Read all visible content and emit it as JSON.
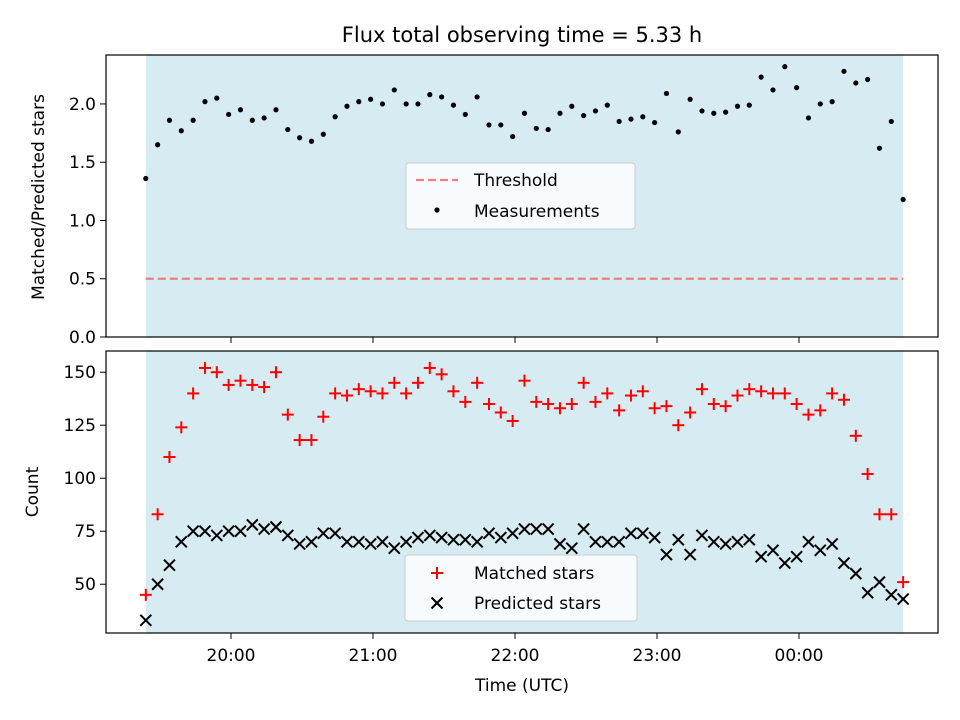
{
  "title": "Flux total observing time = 5.33 h",
  "colors": {
    "band": "#add8e6",
    "threshold": "#f08080",
    "measurements": "#000000",
    "matched": "#ff0000",
    "predicted": "#000000"
  },
  "chart_data": [
    {
      "type": "scatter",
      "ylabel": "Matched/Predicted stars",
      "xlabel": "",
      "ylim": [
        0,
        2.42
      ],
      "yticks": [
        "0.0",
        "0.5",
        "1.0",
        "1.5",
        "2.0"
      ],
      "shaded_band_time_range": [
        "19:24",
        "24:44"
      ],
      "threshold": 0.5,
      "legend_position": "center",
      "legend": [
        "Threshold",
        "Measurements"
      ],
      "series": [
        {
          "name": "Measurements",
          "x": [
            "19:24",
            "19:29",
            "19:34",
            "19:39",
            "19:44",
            "19:49",
            "19:54",
            "19:59",
            "20:04",
            "20:09",
            "20:14",
            "20:19",
            "20:24",
            "20:29",
            "20:34",
            "20:39",
            "20:44",
            "20:49",
            "20:54",
            "20:59",
            "21:04",
            "21:09",
            "21:14",
            "21:19",
            "21:24",
            "21:29",
            "21:34",
            "21:39",
            "21:44",
            "21:49",
            "21:54",
            "21:59",
            "22:04",
            "22:09",
            "22:14",
            "22:19",
            "22:24",
            "22:29",
            "22:34",
            "22:39",
            "22:44",
            "22:49",
            "22:54",
            "22:59",
            "23:04",
            "23:09",
            "23:14",
            "23:19",
            "23:24",
            "23:29",
            "23:34",
            "23:39",
            "23:44",
            "23:49",
            "23:54",
            "23:59",
            "24:04",
            "24:09",
            "24:14",
            "24:19",
            "24:24",
            "24:29",
            "24:34",
            "24:39",
            "24:44"
          ],
          "values": [
            1.36,
            1.65,
            1.86,
            1.77,
            1.86,
            2.02,
            2.05,
            1.91,
            1.95,
            1.86,
            1.88,
            1.95,
            1.78,
            1.71,
            1.68,
            1.74,
            1.89,
            1.98,
            2.02,
            2.04,
            2.0,
            2.12,
            2.0,
            2.0,
            2.08,
            2.06,
            1.99,
            1.91,
            2.06,
            1.82,
            1.82,
            1.72,
            1.92,
            1.79,
            1.78,
            1.92,
            1.98,
            1.9,
            1.94,
            1.99,
            1.85,
            1.87,
            1.89,
            1.84,
            2.09,
            1.76,
            2.04,
            1.94,
            1.92,
            1.93,
            1.98,
            1.99,
            2.23,
            2.12,
            2.32,
            2.14,
            1.88,
            2.0,
            2.02,
            2.28,
            2.18,
            2.21,
            1.62,
            1.85,
            1.18
          ]
        }
      ]
    },
    {
      "type": "scatter",
      "ylabel": "Count",
      "xlabel": "Time (UTC)",
      "ylim": [
        27,
        160
      ],
      "yticks": [
        "50",
        "75",
        "100",
        "125",
        "150"
      ],
      "xticks": [
        "20:00",
        "21:00",
        "22:00",
        "23:00",
        "00:00"
      ],
      "legend_position": "bottom center",
      "series": [
        {
          "name": "Matched stars",
          "x": [
            "19:24",
            "19:29",
            "19:34",
            "19:39",
            "19:44",
            "19:49",
            "19:54",
            "19:59",
            "20:04",
            "20:09",
            "20:14",
            "20:19",
            "20:24",
            "20:29",
            "20:34",
            "20:39",
            "20:44",
            "20:49",
            "20:54",
            "20:59",
            "21:04",
            "21:09",
            "21:14",
            "21:19",
            "21:24",
            "21:29",
            "21:34",
            "21:39",
            "21:44",
            "21:49",
            "21:54",
            "21:59",
            "22:04",
            "22:09",
            "22:14",
            "22:19",
            "22:24",
            "22:29",
            "22:34",
            "22:39",
            "22:44",
            "22:49",
            "22:54",
            "22:59",
            "23:04",
            "23:09",
            "23:14",
            "23:19",
            "23:24",
            "23:29",
            "23:34",
            "23:39",
            "23:44",
            "23:49",
            "23:54",
            "23:59",
            "24:04",
            "24:09",
            "24:14",
            "24:19",
            "24:24",
            "24:29",
            "24:34",
            "24:39",
            "24:44"
          ],
          "values": [
            45,
            83,
            110,
            124,
            140,
            152,
            150,
            144,
            146,
            144,
            143,
            150,
            130,
            118,
            118,
            129,
            140,
            139,
            142,
            141,
            140,
            145,
            140,
            145,
            152,
            149,
            141,
            136,
            145,
            135,
            131,
            127,
            146,
            136,
            135,
            133,
            135,
            145,
            136,
            140,
            132,
            139,
            141,
            133,
            134,
            125,
            131,
            142,
            135,
            134,
            139,
            142,
            141,
            140,
            140,
            135,
            130,
            132,
            140,
            137,
            120,
            102,
            83,
            83,
            51
          ]
        },
        {
          "name": "Predicted stars",
          "x": [
            "19:24",
            "19:29",
            "19:34",
            "19:39",
            "19:44",
            "19:49",
            "19:54",
            "19:59",
            "20:04",
            "20:09",
            "20:14",
            "20:19",
            "20:24",
            "20:29",
            "20:34",
            "20:39",
            "20:44",
            "20:49",
            "20:54",
            "20:59",
            "21:04",
            "21:09",
            "21:14",
            "21:19",
            "21:24",
            "21:29",
            "21:34",
            "21:39",
            "21:44",
            "21:49",
            "21:54",
            "21:59",
            "22:04",
            "22:09",
            "22:14",
            "22:19",
            "22:24",
            "22:29",
            "22:34",
            "22:39",
            "22:44",
            "22:49",
            "22:54",
            "22:59",
            "23:04",
            "23:09",
            "23:14",
            "23:19",
            "23:24",
            "23:29",
            "23:34",
            "23:39",
            "23:44",
            "23:49",
            "23:54",
            "23:59",
            "24:04",
            "24:09",
            "24:14",
            "24:19",
            "24:24",
            "24:29",
            "24:34",
            "24:39",
            "24:44"
          ],
          "values": [
            33,
            50,
            59,
            70,
            75,
            75,
            73,
            75,
            75,
            78,
            76,
            77,
            73,
            69,
            70,
            74,
            74,
            70,
            70,
            69,
            70,
            67,
            70,
            72,
            73,
            72,
            71,
            71,
            70,
            74,
            72,
            74,
            76,
            76,
            76,
            69,
            67,
            76,
            70,
            70,
            70,
            74,
            74,
            72,
            64,
            71,
            64,
            73,
            70,
            69,
            70,
            71,
            63,
            66,
            60,
            63,
            70,
            66,
            69,
            60,
            55,
            46,
            51,
            45,
            43
          ]
        }
      ]
    }
  ]
}
